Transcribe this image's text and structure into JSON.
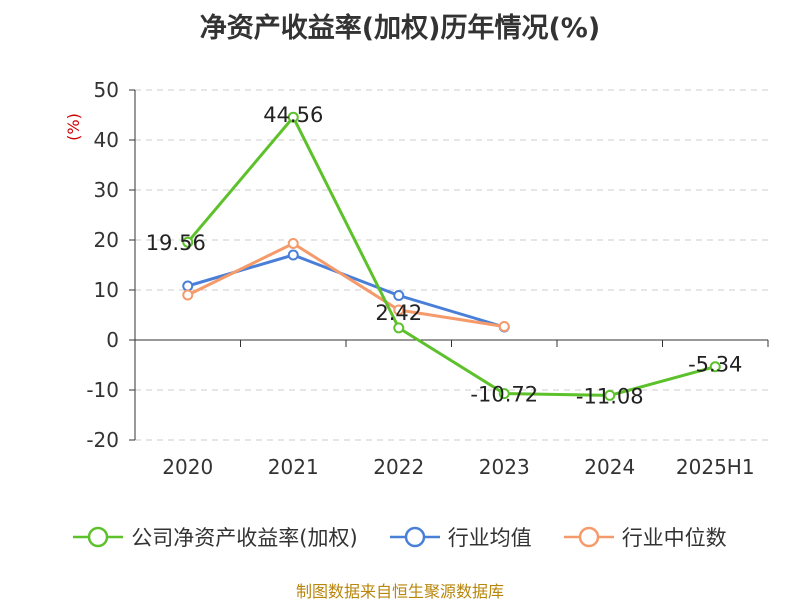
{
  "title": "净资产收益率(加权)历年情况(%)",
  "source": "制图数据来自恒生聚源数据库",
  "y_unit": "(%)",
  "colors": {
    "company": "#5cc12a",
    "industry_avg": "#4a7fd8",
    "industry_median": "#f59a6a",
    "axis": "#333333",
    "grid": "#cccccc",
    "unit_label": "#cc0000"
  },
  "chart_data": {
    "type": "line",
    "title": "净资产收益率(加权)历年情况(%)",
    "xlabel": "",
    "ylabel": "(%)",
    "categories": [
      "2020",
      "2021",
      "2022",
      "2023",
      "2024",
      "2025H1"
    ],
    "ylim": [
      -20,
      50
    ],
    "yticks": [
      50,
      40,
      30,
      20,
      10,
      0,
      -10,
      -20
    ],
    "grid": true,
    "legend_position": "bottom",
    "series": [
      {
        "name": "公司净资产收益率(加权)",
        "color": "#5cc12a",
        "values": [
          19.56,
          44.56,
          2.42,
          -10.72,
          -11.08,
          -5.34
        ],
        "labels": [
          "19.56",
          "44.56",
          "2.42",
          "-10.72",
          "-11.08",
          "-5.34"
        ]
      },
      {
        "name": "行业均值",
        "color": "#4a7fd8",
        "values": [
          10.8,
          17.0,
          8.9,
          2.6,
          null,
          null
        ]
      },
      {
        "name": "行业中位数",
        "color": "#f59a6a",
        "values": [
          9.0,
          19.3,
          6.0,
          2.7,
          null,
          null
        ]
      }
    ]
  }
}
